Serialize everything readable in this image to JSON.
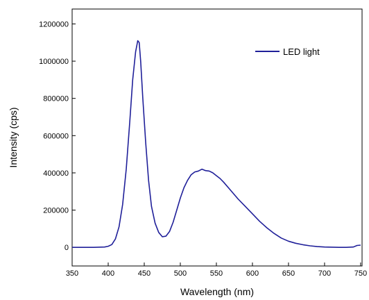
{
  "chart_data": {
    "type": "line",
    "title": "",
    "xlabel": "Wavelength (nm)",
    "ylabel": "Intensity (cps)",
    "xlim": [
      350,
      752
    ],
    "ylim": [
      -100000,
      1280000
    ],
    "xticks": [
      350,
      400,
      450,
      500,
      550,
      600,
      650,
      700,
      750
    ],
    "xtick_labels": [
      "350",
      "400",
      "450",
      "500",
      "550",
      "600",
      "650",
      "700",
      "750"
    ],
    "yticks": [
      0,
      200000,
      400000,
      600000,
      800000,
      1000000,
      1200000
    ],
    "ytick_labels": [
      "0",
      "200000",
      "400000",
      "600000",
      "800000",
      "1000000",
      "1200000"
    ],
    "grid": false,
    "legend_position": "top-right",
    "series": [
      {
        "name": "LED light",
        "color": "#1f1f99",
        "x": [
          350,
          380,
          395,
          400,
          405,
          410,
          415,
          420,
          425,
          430,
          434,
          438,
          441,
          443,
          445,
          448,
          452,
          456,
          460,
          465,
          470,
          475,
          480,
          485,
          490,
          495,
          500,
          505,
          510,
          515,
          520,
          525,
          530,
          535,
          540,
          545,
          550,
          555,
          560,
          570,
          580,
          590,
          600,
          610,
          620,
          630,
          640,
          650,
          660,
          670,
          680,
          690,
          700,
          710,
          720,
          730,
          740,
          745,
          750
        ],
        "y": [
          0,
          0,
          2000,
          6000,
          15000,
          45000,
          110000,
          230000,
          420000,
          680000,
          900000,
          1050000,
          1110000,
          1100000,
          1000000,
          800000,
          560000,
          360000,
          220000,
          130000,
          80000,
          57000,
          60000,
          85000,
          135000,
          200000,
          265000,
          320000,
          360000,
          390000,
          405000,
          410000,
          420000,
          412000,
          410000,
          400000,
          385000,
          370000,
          350000,
          305000,
          260000,
          220000,
          180000,
          140000,
          105000,
          75000,
          50000,
          33000,
          22000,
          14000,
          8000,
          4000,
          2000,
          1000,
          0,
          0,
          2000,
          10000,
          12000
        ]
      }
    ]
  }
}
